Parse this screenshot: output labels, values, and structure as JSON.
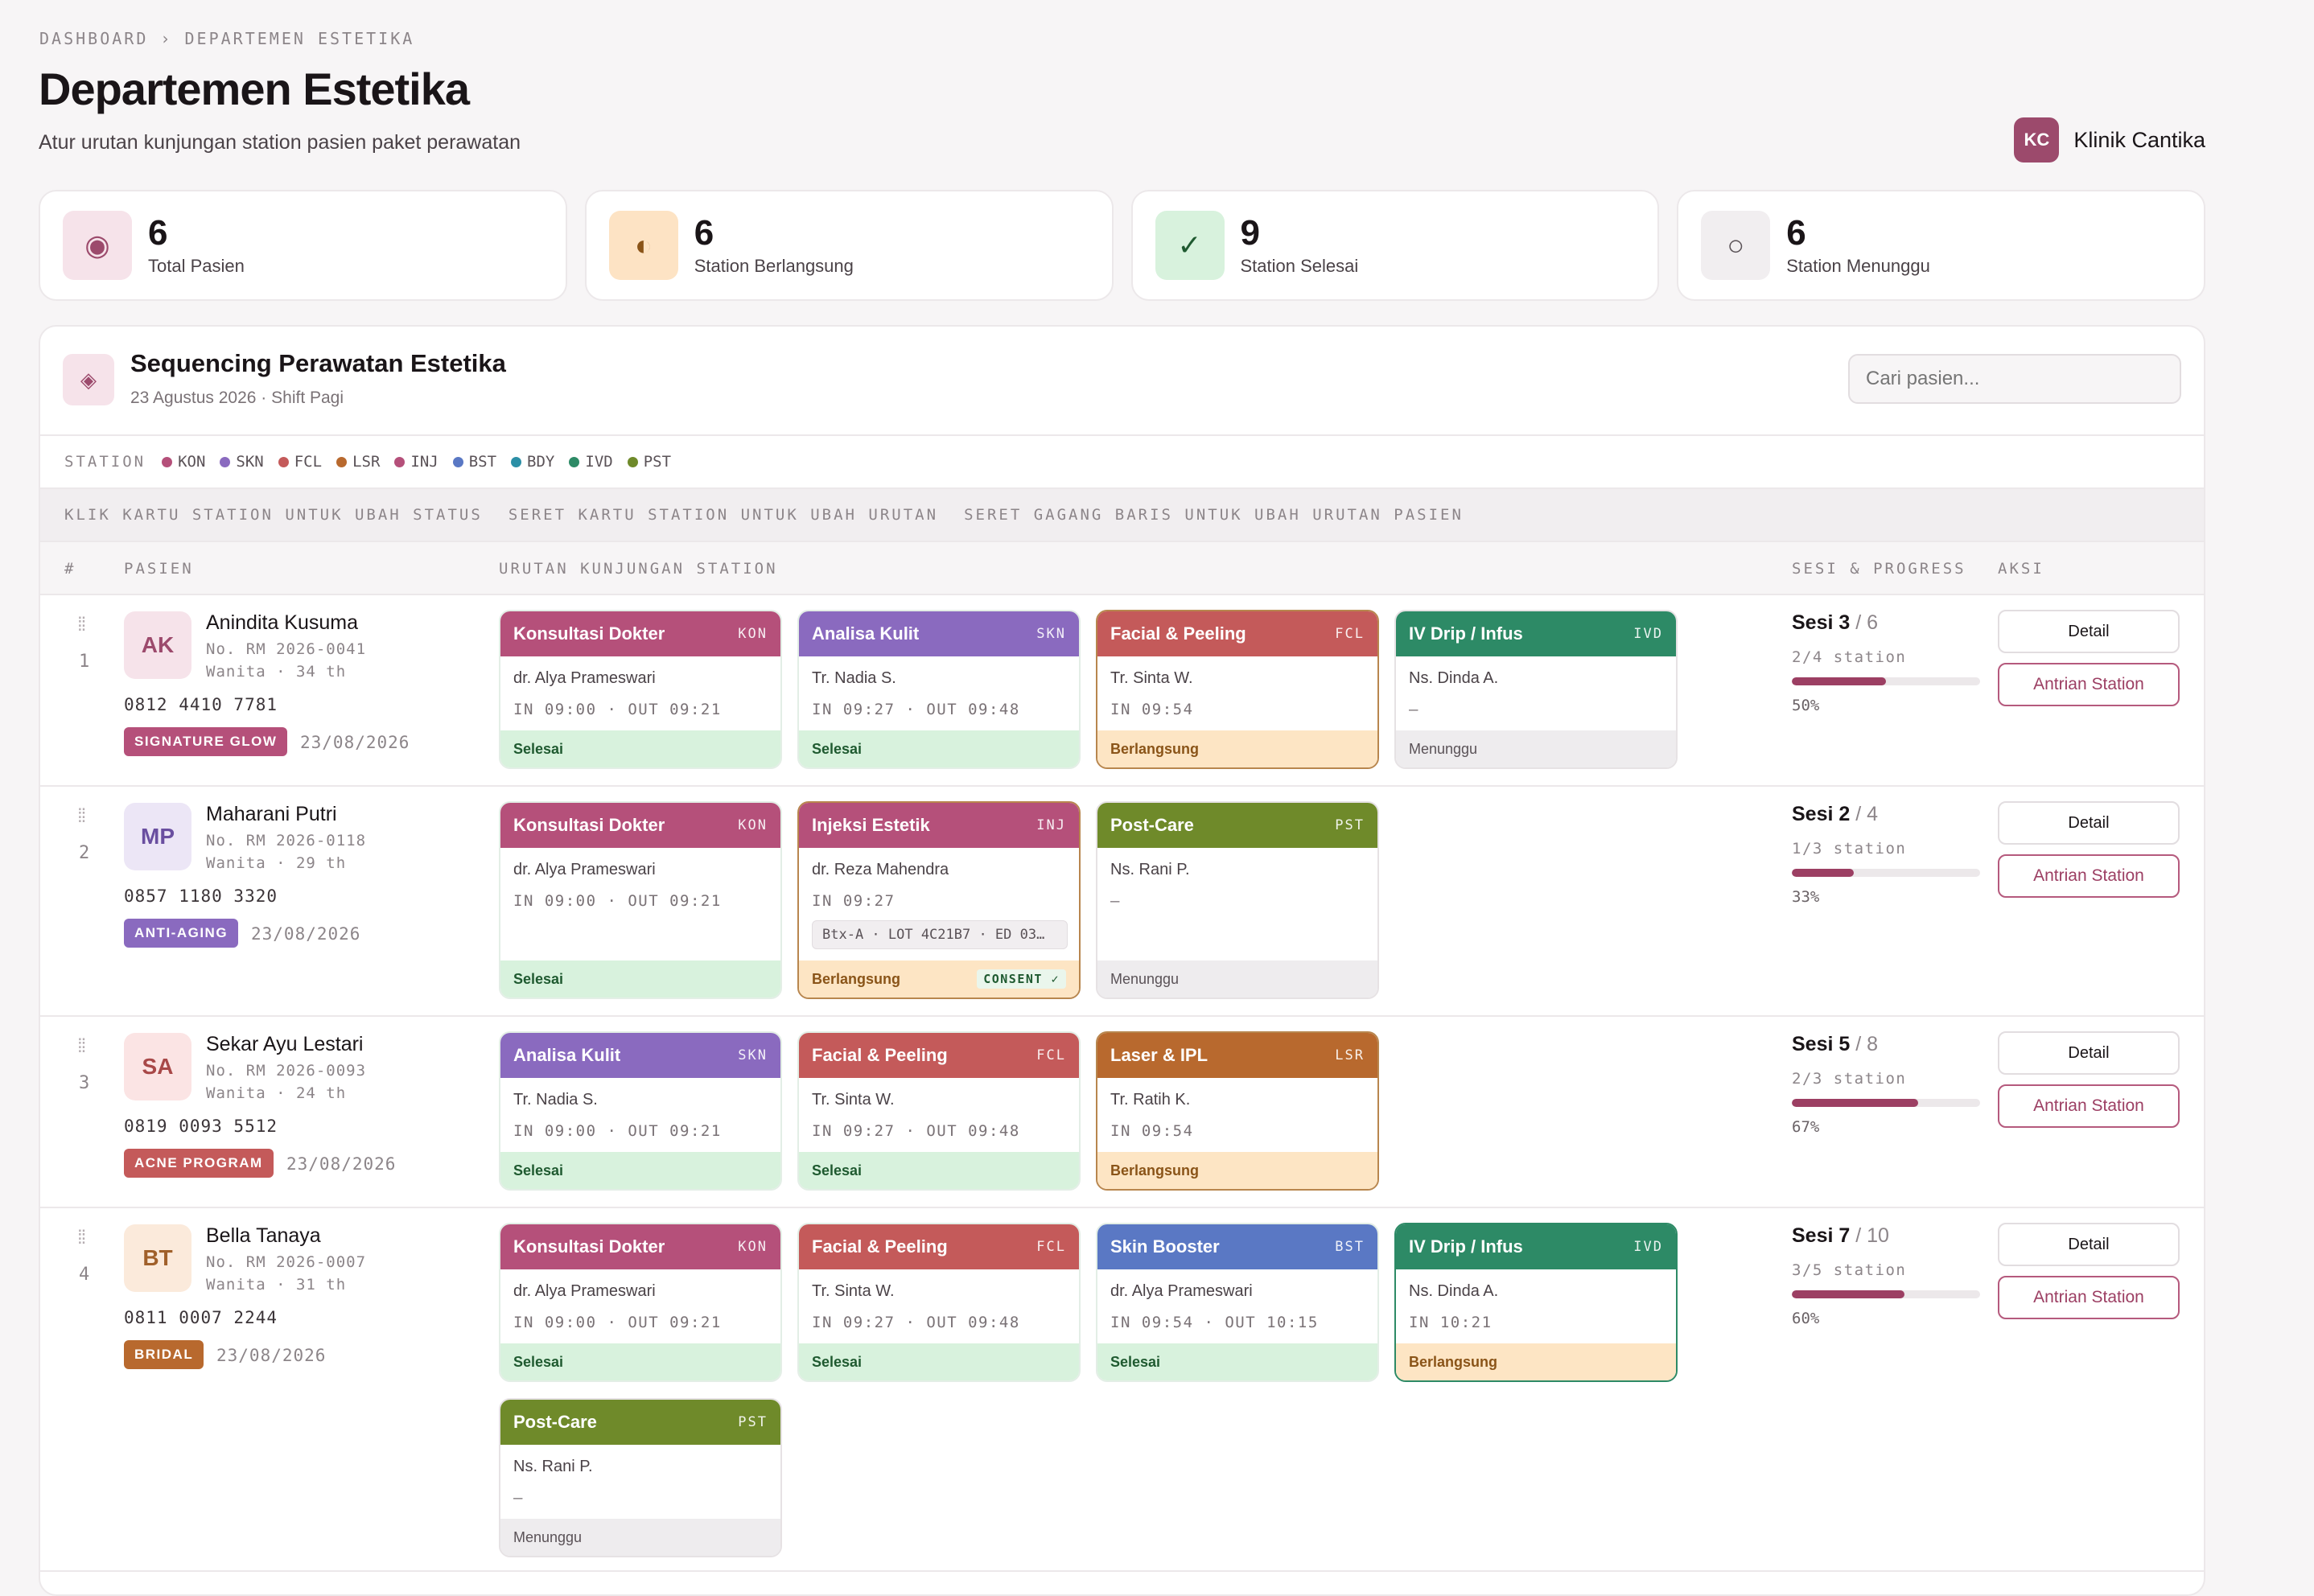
{
  "breadcrumb": "DASHBOARD › DEPARTEMEN ESTETIKA",
  "page": {
    "title": "Departemen Estetika",
    "subtitle": "Atur urutan kunjungan station pasien paket perawatan"
  },
  "clinic": {
    "initials": "KC",
    "name": "Klinik Cantika"
  },
  "stats": [
    {
      "icon": "target-icon",
      "glyph": "◉",
      "value": "6",
      "label": "Total Pasien",
      "bg": "#f6e3ea",
      "fg": "#9c4a6c"
    },
    {
      "icon": "half-circle-icon",
      "glyph": "◐",
      "value": "6",
      "label": "Station Berlangsung",
      "bg": "#fde3c4",
      "fg": "#8a5418"
    },
    {
      "icon": "check-icon",
      "glyph": "✓",
      "value": "9",
      "label": "Station Selesai",
      "bg": "#d8f2dd",
      "fg": "#1f5a30"
    },
    {
      "icon": "circle-icon",
      "glyph": "○",
      "value": "6",
      "label": "Station Menunggu",
      "bg": "#f1eef0",
      "fg": "#5a5257"
    }
  ],
  "panel": {
    "title": "Sequencing Perawatan Estetika",
    "subtitle": "23 Agustus 2026 · Shift Pagi",
    "search_placeholder": "Cari pasien..."
  },
  "legend": {
    "title": "STATION",
    "items": [
      {
        "code": "KON",
        "color": "#b5507a"
      },
      {
        "code": "SKN",
        "color": "#8a6abf"
      },
      {
        "code": "FCL",
        "color": "#c45a5a"
      },
      {
        "code": "LSR",
        "color": "#b8692e"
      },
      {
        "code": "INJ",
        "color": "#b5507a"
      },
      {
        "code": "BST",
        "color": "#5a78c4"
      },
      {
        "code": "BDY",
        "color": "#2b8fa6"
      },
      {
        "code": "IVD",
        "color": "#2d8a66"
      },
      {
        "code": "PST",
        "color": "#6f8a2a"
      }
    ]
  },
  "hints": [
    "KLIK KARTU STATION UNTUK UBAH STATUS",
    "SERET KARTU STATION UNTUK UBAH URUTAN",
    "SERET GAGANG BARIS UNTUK UBAH URUTAN PASIEN"
  ],
  "table_header": {
    "num": "#",
    "patient": "PASIEN",
    "sequence": "URUTAN KUNJUNGAN STATION",
    "session": "SESI & PROGRESS",
    "action": "AKSI"
  },
  "actions": {
    "detail": "Detail",
    "queue": "Antrian Station"
  },
  "patients": [
    {
      "num": "1",
      "initials": "AK",
      "avatar_bg": "#f6e3ea",
      "avatar_fg": "#9c4a6c",
      "name": "Anindita Kusuma",
      "rm": "No. RM 2026-0041",
      "meta": "Wanita · 34 th",
      "phone": "0812 4410 7781",
      "program": "SIGNATURE GLOW",
      "program_color": "#b5507a",
      "date": "23/08/2026",
      "session_label": "Sesi 3",
      "session_total": "/ 6",
      "station_progress": "2/4 station",
      "progress": 0.5,
      "progress_label": "50%",
      "stations": [
        {
          "name": "Konsultasi Dokter",
          "code": "KON",
          "color": "#b5507a",
          "staff": "dr. Alya Prameswari",
          "time": "IN 09:00 · OUT 09:21",
          "status": "Selesai",
          "state": "done"
        },
        {
          "name": "Analisa Kulit",
          "code": "SKN",
          "color": "#8a6abf",
          "staff": "Tr. Nadia S.",
          "time": "IN 09:27 · OUT 09:48",
          "status": "Selesai",
          "state": "done"
        },
        {
          "name": "Facial & Peeling",
          "code": "FCL",
          "color": "#c45a5a",
          "staff": "Tr. Sinta W.",
          "time": "IN 09:54",
          "status": "Berlangsung",
          "state": "ongoing"
        },
        {
          "name": "IV Drip / Infus",
          "code": "IVD",
          "color": "#2d8a66",
          "staff": "Ns. Dinda A.",
          "time": "—",
          "status": "Menunggu",
          "state": "waiting"
        }
      ]
    },
    {
      "num": "2",
      "initials": "MP",
      "avatar_bg": "#ece6f6",
      "avatar_fg": "#6a4fa0",
      "name": "Maharani Putri",
      "rm": "No. RM 2026-0118",
      "meta": "Wanita · 29 th",
      "phone": "0857 1180 3320",
      "program": "ANTI-AGING",
      "program_color": "#8a6abf",
      "date": "23/08/2026",
      "session_label": "Sesi 2",
      "session_total": "/ 4",
      "station_progress": "1/3 station",
      "progress": 0.33,
      "progress_label": "33%",
      "stations": [
        {
          "name": "Konsultasi Dokter",
          "code": "KON",
          "color": "#b5507a",
          "staff": "dr. Alya Prameswari",
          "time": "IN 09:00 · OUT 09:21",
          "status": "Selesai",
          "state": "done"
        },
        {
          "name": "Injeksi Estetik",
          "code": "INJ",
          "color": "#b5507a",
          "staff": "dr. Reza Mahendra",
          "time": "IN 09:27",
          "lot": "Btx-A · LOT 4C21B7 · ED 03…",
          "status": "Berlangsung",
          "consent": "CONSENT ✓",
          "state": "ongoing"
        },
        {
          "name": "Post-Care",
          "code": "PST",
          "color": "#6f8a2a",
          "staff": "Ns. Rani P.",
          "time": "—",
          "status": "Menunggu",
          "state": "waiting"
        }
      ]
    },
    {
      "num": "3",
      "initials": "SA",
      "avatar_bg": "#fbe4e4",
      "avatar_fg": "#a84848",
      "name": "Sekar Ayu Lestari",
      "rm": "No. RM 2026-0093",
      "meta": "Wanita · 24 th",
      "phone": "0819 0093 5512",
      "program": "ACNE PROGRAM",
      "program_color": "#c45a5a",
      "date": "23/08/2026",
      "session_label": "Sesi 5",
      "session_total": "/ 8",
      "station_progress": "2/3 station",
      "progress": 0.67,
      "progress_label": "67%",
      "stations": [
        {
          "name": "Analisa Kulit",
          "code": "SKN",
          "color": "#8a6abf",
          "staff": "Tr. Nadia S.",
          "time": "IN 09:00 · OUT 09:21",
          "status": "Selesai",
          "state": "done"
        },
        {
          "name": "Facial & Peeling",
          "code": "FCL",
          "color": "#c45a5a",
          "staff": "Tr. Sinta W.",
          "time": "IN 09:27 · OUT 09:48",
          "status": "Selesai",
          "state": "done"
        },
        {
          "name": "Laser & IPL",
          "code": "LSR",
          "color": "#b8692e",
          "staff": "Tr. Ratih K.",
          "time": "IN 09:54",
          "status": "Berlangsung",
          "state": "ongoing"
        }
      ]
    },
    {
      "num": "4",
      "initials": "BT",
      "avatar_bg": "#fbeadb",
      "avatar_fg": "#a0602a",
      "name": "Bella Tanaya",
      "rm": "No. RM 2026-0007",
      "meta": "Wanita · 31 th",
      "phone": "0811 0007 2244",
      "program": "BRIDAL",
      "program_color": "#b8692e",
      "date": "23/08/2026",
      "session_label": "Sesi 7",
      "session_total": "/ 10",
      "station_progress": "3/5 station",
      "progress": 0.6,
      "progress_label": "60%",
      "stations": [
        {
          "name": "Konsultasi Dokter",
          "code": "KON",
          "color": "#b5507a",
          "staff": "dr. Alya Prameswari",
          "time": "IN 09:00 · OUT 09:21",
          "status": "Selesai",
          "state": "done"
        },
        {
          "name": "Facial & Peeling",
          "code": "FCL",
          "color": "#c45a5a",
          "staff": "Tr. Sinta W.",
          "time": "IN 09:27 · OUT 09:48",
          "status": "Selesai",
          "state": "done"
        },
        {
          "name": "Skin Booster",
          "code": "BST",
          "color": "#5a78c4",
          "staff": "dr. Alya Prameswari",
          "time": "IN 09:54 · OUT 10:15",
          "status": "Selesai",
          "state": "done"
        },
        {
          "name": "IV Drip / Infus",
          "code": "IVD",
          "color": "#2d8a66",
          "staff": "Ns. Dinda A.",
          "time": "IN 10:21",
          "status": "Berlangsung",
          "state": "ongoing"
        },
        {
          "name": "Post-Care",
          "code": "PST",
          "color": "#6f8a2a",
          "staff": "Ns. Rani P.",
          "time": "—",
          "status": "Menunggu",
          "state": "waiting"
        }
      ]
    }
  ]
}
